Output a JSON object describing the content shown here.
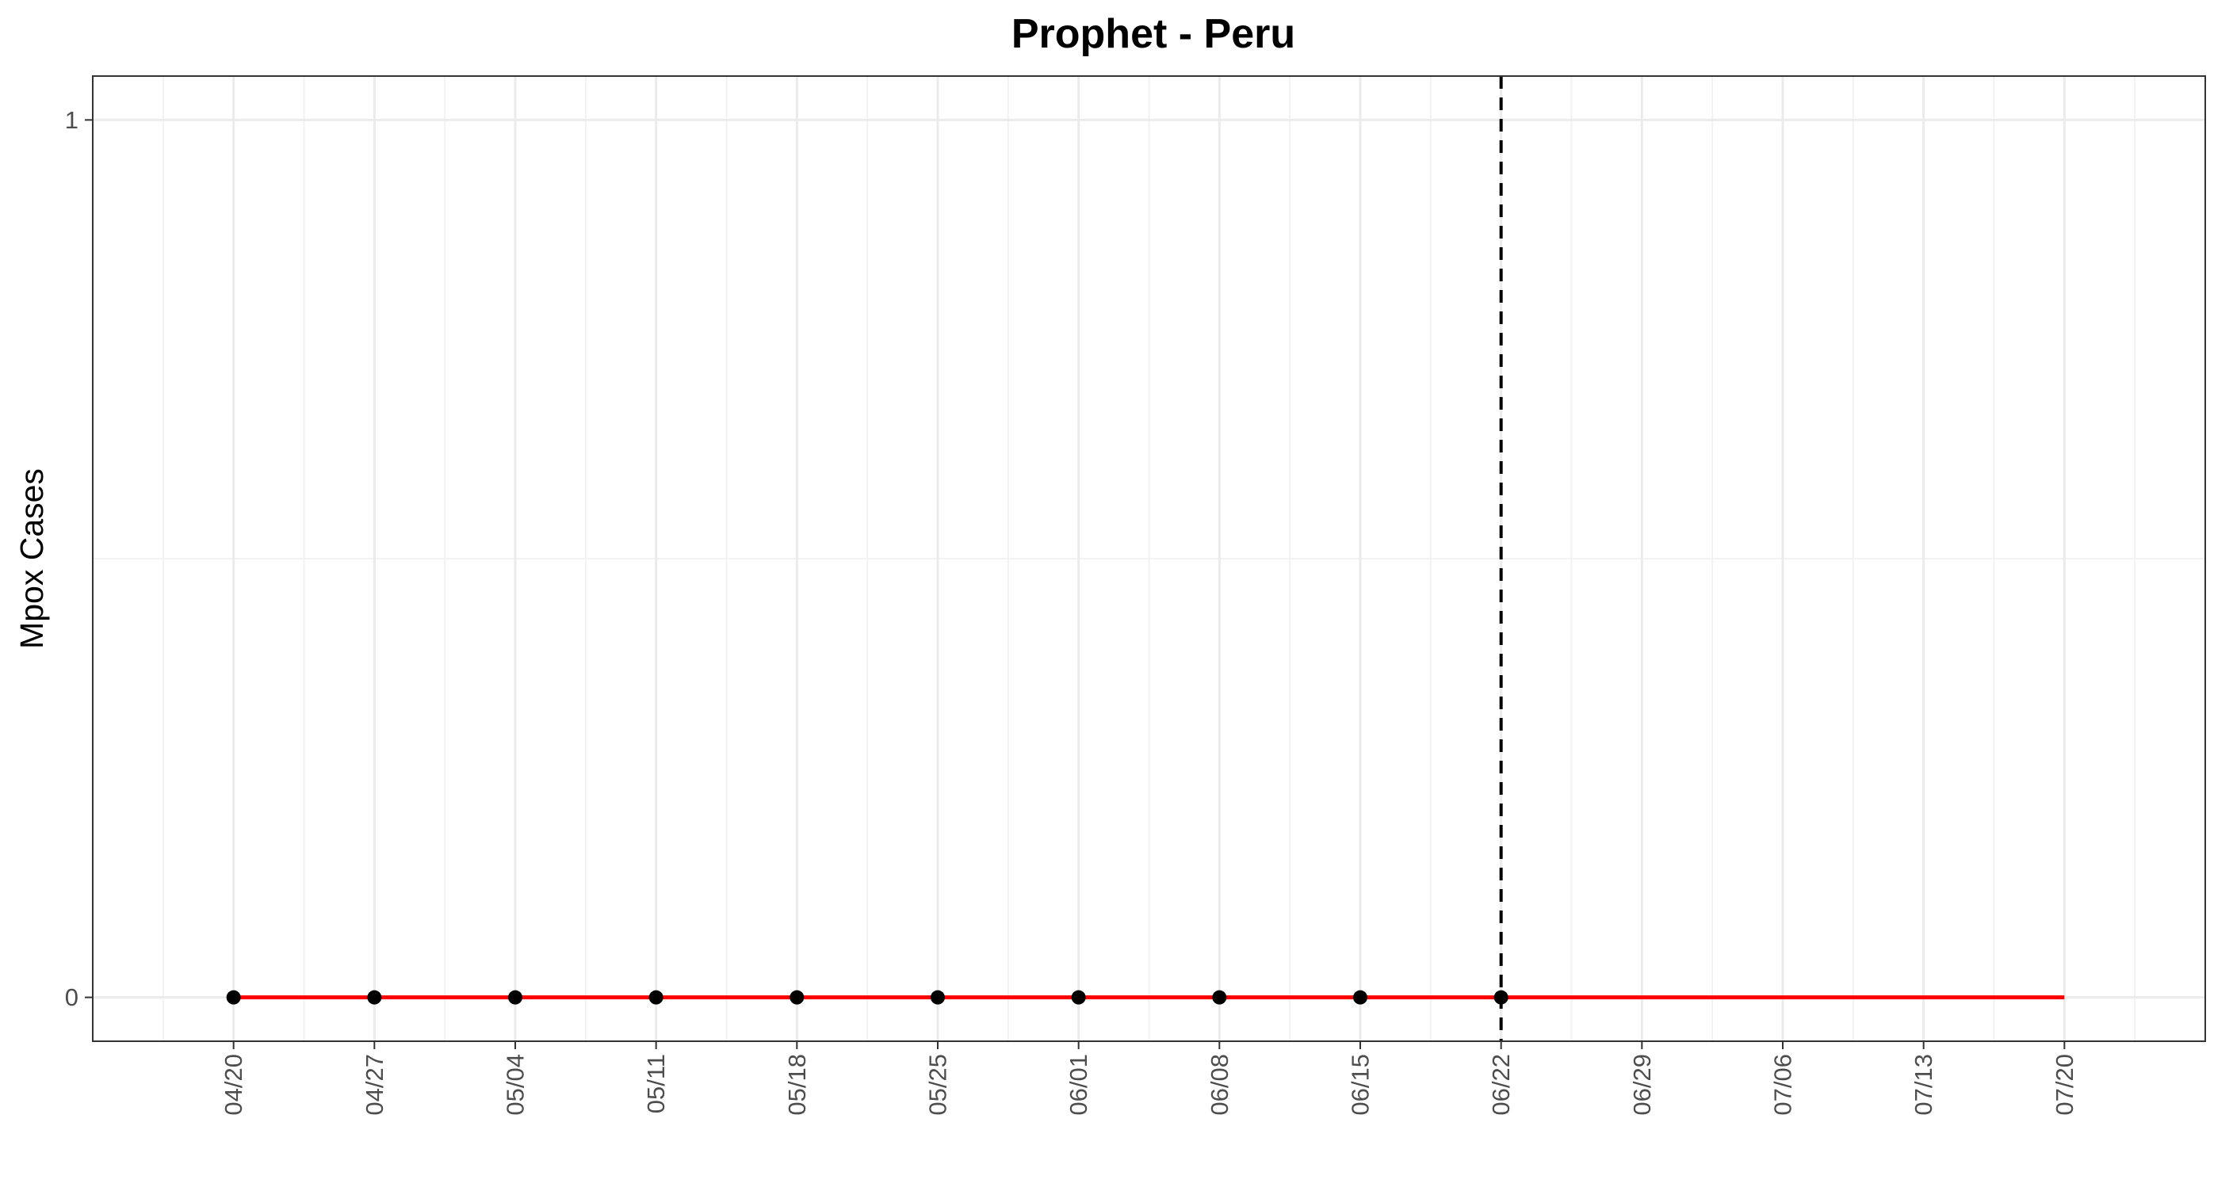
{
  "chart_data": {
    "type": "line",
    "title": "Prophet - Peru",
    "xlabel": "",
    "ylabel": "Mpox Cases",
    "x_tick_labels": [
      "04/20",
      "04/27",
      "05/04",
      "05/11",
      "05/18",
      "05/25",
      "06/01",
      "06/08",
      "06/15",
      "06/22",
      "06/29",
      "07/06",
      "07/13",
      "07/20"
    ],
    "y_tick_labels": [
      "0",
      "1"
    ],
    "ylim": [
      -0.05,
      1.05
    ],
    "xlim": [
      "04/13",
      "07/27"
    ],
    "grid": true,
    "series": [
      {
        "role": "forecast",
        "style": "line",
        "color": "#ff0000",
        "x": [
          "04/20",
          "04/27",
          "05/04",
          "05/11",
          "05/18",
          "05/25",
          "06/01",
          "06/08",
          "06/15",
          "06/22",
          "06/29",
          "07/06",
          "07/13",
          "07/20"
        ],
        "values": [
          0,
          0,
          0,
          0,
          0,
          0,
          0,
          0,
          0,
          0,
          0,
          0,
          0,
          0
        ]
      },
      {
        "role": "observed",
        "style": "points",
        "color": "#000000",
        "x": [
          "04/20",
          "04/27",
          "05/04",
          "05/11",
          "05/18",
          "05/25",
          "06/01",
          "06/08",
          "06/15",
          "06/22"
        ],
        "values": [
          0,
          0,
          0,
          0,
          0,
          0,
          0,
          0,
          0,
          0
        ]
      }
    ],
    "vline": {
      "x": "06/22",
      "style": "dashed",
      "color": "#000000"
    }
  }
}
